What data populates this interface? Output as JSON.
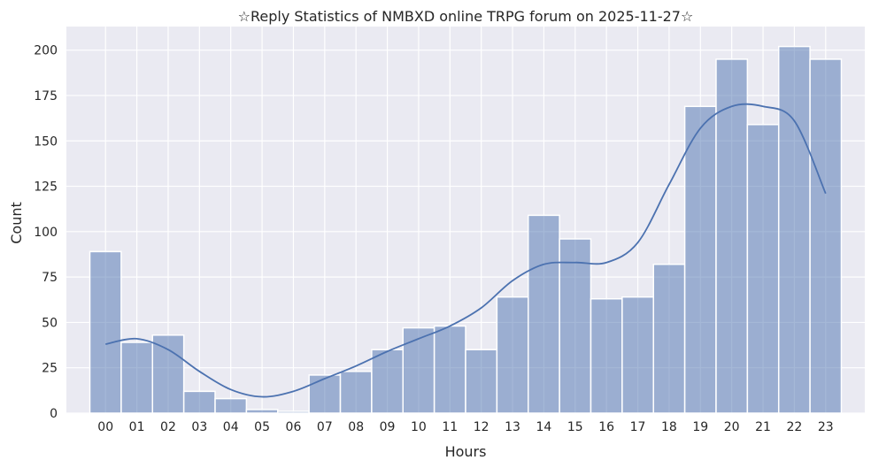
{
  "chart_data": {
    "type": "bar",
    "title": "☆Reply Statistics of NMBXD online TRPG forum on 2025-11-27☆",
    "xlabel": "Hours",
    "ylabel": "Count",
    "categories": [
      "00",
      "01",
      "02",
      "03",
      "04",
      "05",
      "06",
      "07",
      "08",
      "09",
      "10",
      "11",
      "12",
      "13",
      "14",
      "15",
      "16",
      "17",
      "18",
      "19",
      "20",
      "21",
      "22",
      "23"
    ],
    "values": [
      89,
      39,
      43,
      12,
      8,
      2,
      1,
      21,
      23,
      35,
      47,
      48,
      35,
      64,
      109,
      96,
      63,
      64,
      82,
      169,
      195,
      159,
      202,
      195
    ],
    "kde": [
      38,
      41,
      35,
      23,
      13,
      9,
      12,
      19,
      26,
      34,
      41,
      48,
      58,
      73,
      82,
      83,
      83,
      94,
      126,
      157,
      169,
      169,
      161,
      121
    ],
    "ylim": [
      0,
      213
    ],
    "yticks": [
      0,
      25,
      50,
      75,
      100,
      125,
      150,
      175,
      200
    ],
    "grid": true,
    "colors": {
      "background": "#eaeaf2",
      "grid": "#ffffff",
      "bar": "#4c72b0",
      "bar_opacity": 0.5,
      "line": "#4c72b0"
    }
  }
}
